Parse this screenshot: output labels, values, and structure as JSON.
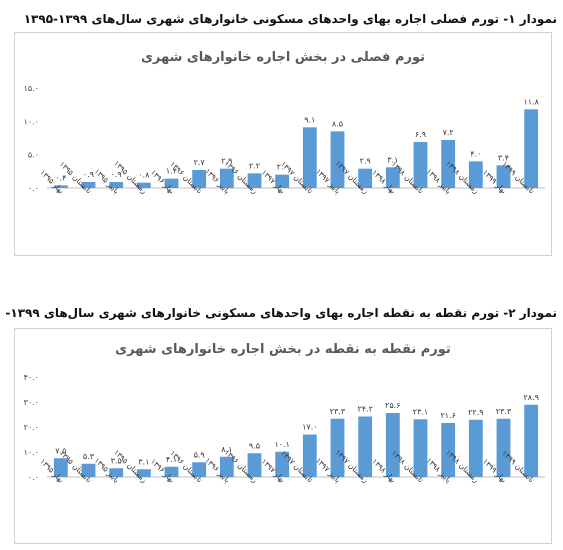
{
  "headings": {
    "chart1": "نمودار ۱- تورم فصلی اجاره بهای واحدهای مسکونی خانوارهای شهری سال‌های ۱۳۹۹-۱۳۹۵",
    "chart2": "نمودار ۲- تورم نقطه به نقطه اجاره بهای واحدهای مسکونی خانوارهای شهری سال‌های ۱۳۹۹-۱۳۹۵"
  },
  "colors": {
    "bar": "#5b9bd5",
    "grid": "#d9d9d9",
    "border": "#d0d0d0"
  },
  "chart_data": [
    {
      "type": "bar",
      "title": "تورم فصلی در بخش اجاره خانوارهای شهری",
      "categories": [
        "بهار ۱۳۹۵",
        "تابستان ۱۳۹۵",
        "پاییز ۱۳۹۵",
        "زمستان ۱۳۹۵",
        "بهار ۱۳۹۶",
        "تابستان ۱۳۹۶",
        "پاییز ۱۳۹۶",
        "زمستان ۱۳۹۶",
        "بهار ۱۳۹۷",
        "تابستان ۱۳۹۷",
        "پاییز ۱۳۹۷",
        "زمستان ۱۳۹۷",
        "بهار ۱۳۹۸",
        "تابستان ۱۳۹۸",
        "پاییز ۱۳۹۸",
        "زمستان ۱۳۹۸",
        "بهار ۱۳۹۹",
        "تابستان ۱۳۹۹"
      ],
      "values": [
        0.4,
        0.9,
        0.9,
        0.8,
        1.4,
        2.7,
        2.9,
        2.2,
        2.0,
        9.1,
        8.5,
        2.9,
        3.1,
        6.9,
        7.2,
        4.0,
        3.4,
        11.8
      ],
      "value_labels": [
        "۰.۴",
        "۰.۹",
        "۰.۹",
        "۰.۸",
        "۱.۴",
        "۲.۷",
        "۲.۹",
        "۲.۲",
        "۲.۰",
        "۹.۱",
        "۸.۵",
        "۲.۹",
        "۳.۱",
        "۶.۹",
        "۷.۲",
        "۴.۰",
        "۳.۴",
        "۱۱.۸"
      ],
      "ylim": [
        0,
        15
      ],
      "yticks": [
        0,
        5,
        10,
        15
      ],
      "ytick_labels": [
        "۰.۰",
        "۵.۰",
        "۱۰.۰",
        "۱۵.۰"
      ],
      "grid": false
    },
    {
      "type": "bar",
      "title": "تورم نقطه به نقطه در بخش اجاره خانوارهای شهری",
      "categories": [
        "بهار ۱۳۹۵",
        "تابستان ۱۳۹۵",
        "پاییز ۱۳۹۵",
        "زمستان ۱۳۹۵",
        "بهار ۱۳۹۶",
        "تابستان ۱۳۹۶",
        "پاییز ۱۳۹۶",
        "زمستان ۱۳۹۶",
        "بهار ۱۳۹۷",
        "تابستان ۱۳۹۷",
        "پاییز ۱۳۹۷",
        "زمستان ۱۳۹۷",
        "بهار ۱۳۹۸",
        "تابستان ۱۳۹۸",
        "پاییز ۱۳۹۸",
        "زمستان ۱۳۹۸",
        "بهار ۱۳۹۹",
        "تابستان ۱۳۹۹"
      ],
      "values": [
        7.5,
        5.3,
        3.5,
        3.1,
        4.1,
        5.9,
        8.1,
        9.5,
        10.1,
        17.0,
        23.3,
        24.2,
        25.6,
        23.1,
        21.6,
        22.9,
        23.3,
        28.9
      ],
      "value_labels": [
        "۷.۵",
        "۵.۳",
        "۳.۵",
        "۳.۱",
        "۴.۱",
        "۵.۹",
        "۸.۱",
        "۹.۵",
        "۱۰.۱",
        "۱۷.۰",
        "۲۳.۳",
        "۲۴.۲",
        "۲۵.۶",
        "۲۳.۱",
        "۲۱.۶",
        "۲۲.۹",
        "۲۳.۳",
        "۲۸.۹"
      ],
      "ylim": [
        0,
        40
      ],
      "yticks": [
        0,
        10,
        20,
        30,
        40
      ],
      "ytick_labels": [
        "۰.۰",
        "۱۰.۰",
        "۲۰.۰",
        "۳۰.۰",
        "۴۰.۰"
      ],
      "grid": false
    }
  ]
}
